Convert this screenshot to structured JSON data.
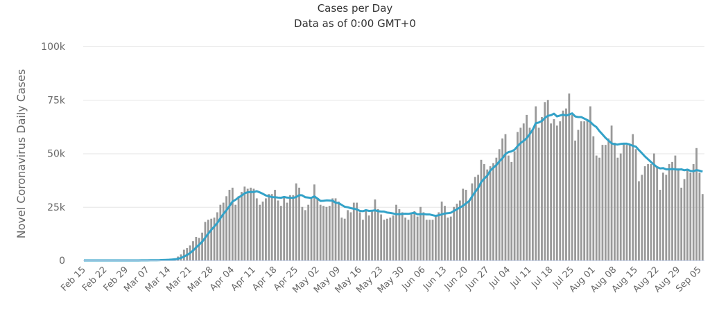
{
  "chart_data": {
    "type": "bar",
    "title": "Cases per Day",
    "subtitle": "Data as of 0:00 GMT+0",
    "xlabel": "",
    "ylabel": "Novel Coronavirus Daily Cases",
    "ylim": [
      0,
      100000
    ],
    "y_ticks": [
      0,
      25000,
      50000,
      75000,
      100000
    ],
    "y_tick_labels": [
      "0",
      "25k",
      "50k",
      "75k",
      "100k"
    ],
    "x_tick_labels": [
      "Feb 15",
      "Feb 22",
      "Feb 29",
      "Mar 07",
      "Mar 14",
      "Mar 21",
      "Mar 28",
      "Apr 04",
      "Apr 11",
      "Apr 18",
      "Apr 25",
      "May 02",
      "May 09",
      "May 16",
      "May 23",
      "May 30",
      "Jun 06",
      "Jun 13",
      "Jun 20",
      "Jun 27",
      "Jul 04",
      "Jul 11",
      "Jul 18",
      "Jul 25",
      "Aug 01",
      "Aug 08",
      "Aug 15",
      "Aug 22",
      "Aug 29",
      "Sep 05"
    ],
    "x_tick_interval_days": 7,
    "grid": true,
    "colors": {
      "bars": "#999999",
      "moving_average": "#33a2c8"
    },
    "series": [
      {
        "name": "Daily Cases",
        "type": "bar",
        "values": [
          0,
          0,
          0,
          0,
          0,
          0,
          0,
          0,
          0,
          0,
          0,
          0,
          0,
          3,
          2,
          10,
          20,
          25,
          30,
          40,
          70,
          100,
          120,
          150,
          230,
          300,
          400,
          500,
          600,
          800,
          1000,
          1800,
          2800,
          5000,
          5800,
          7000,
          9000,
          11000,
          10500,
          13000,
          18000,
          19000,
          19500,
          20000,
          22500,
          26000,
          27000,
          30000,
          33000,
          34000,
          26000,
          30000,
          32000,
          34500,
          33500,
          34000,
          33500,
          29000,
          26000,
          27500,
          29000,
          31000,
          31000,
          33000,
          28000,
          25500,
          30000,
          27000,
          30500,
          30500,
          36000,
          34000,
          25000,
          23500,
          26000,
          29500,
          35500,
          29000,
          26000,
          25500,
          25000,
          25500,
          29000,
          29000,
          27500,
          20000,
          19500,
          23500,
          22500,
          27000,
          27000,
          22500,
          19000,
          23000,
          21000,
          23000,
          28500,
          24000,
          21500,
          19000,
          19500,
          20000,
          21000,
          26000,
          24000,
          22500,
          20000,
          19000,
          21500,
          23000,
          20500,
          25000,
          22500,
          19000,
          19000,
          19000,
          21000,
          22500,
          27500,
          25500,
          20000,
          20500,
          25000,
          26500,
          28000,
          33500,
          33000,
          27500,
          36000,
          39000,
          40000,
          47000,
          45000,
          42500,
          44000,
          45500,
          48000,
          52000,
          57000,
          59000,
          49000,
          46000,
          51000,
          60000,
          62000,
          64000,
          68000,
          62000,
          61000,
          72000,
          62000,
          67000,
          74000,
          75000,
          64000,
          66000,
          63000,
          65000,
          70000,
          71000,
          78000,
          68000,
          56000,
          61000,
          65000,
          65000,
          66000,
          72000,
          58000,
          49000,
          48000,
          54000,
          54000,
          57000,
          63000,
          55000,
          48000,
          50000,
          55000,
          54000,
          54000,
          59000,
          52000,
          37000,
          40000,
          44000,
          45000,
          45000,
          50000,
          44000,
          33000,
          41000,
          40000,
          45000,
          46000,
          49000,
          43000,
          34000,
          38000,
          42000,
          41000,
          45000,
          52500,
          41000,
          31000
        ]
      },
      {
        "name": "7-day moving average",
        "type": "line",
        "derived_from": "Daily Cases",
        "window": 7
      }
    ]
  }
}
